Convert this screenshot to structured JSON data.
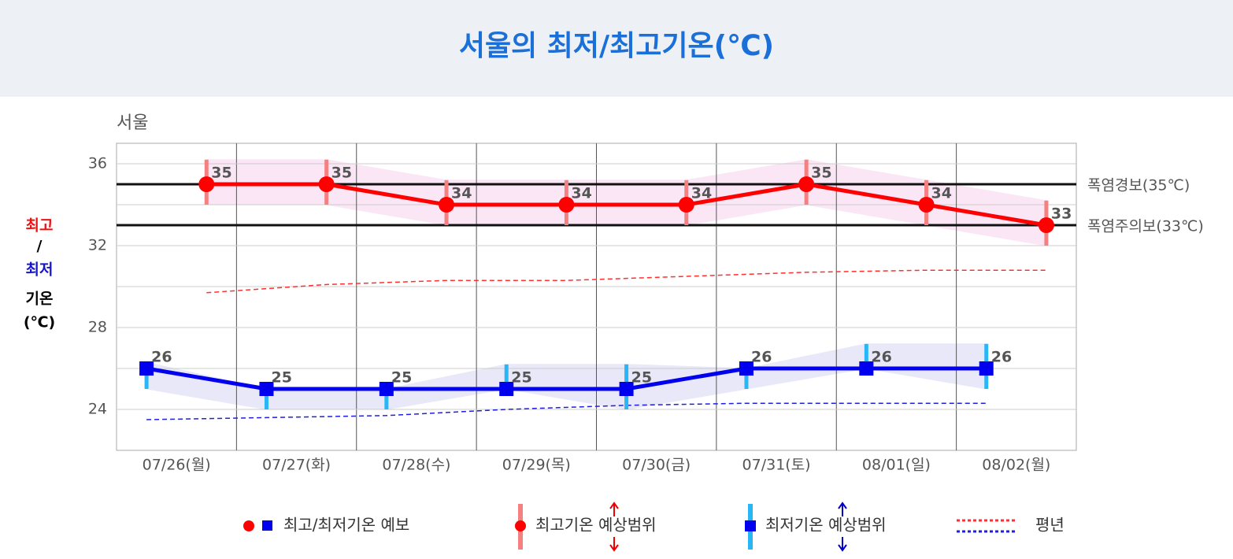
{
  "chart_data": {
    "type": "line",
    "title": "서울의 최저/최고기온(℃)",
    "subtitle": "서울",
    "y_axis_title": [
      "최고",
      "/",
      "최저",
      "기온",
      "(℃)"
    ],
    "categories": [
      "07/26(월)",
      "07/27(화)",
      "07/28(수)",
      "07/29(목)",
      "07/30(금)",
      "07/31(토)",
      "08/01(일)",
      "08/02(월)"
    ],
    "ylim": [
      22,
      37
    ],
    "yticks": [
      24,
      28,
      32,
      36
    ],
    "y_minor_grid": [
      26,
      30,
      34
    ],
    "grid": true,
    "series": [
      {
        "color": "#ff0000",
        "marker": "circle",
        "values": [
          35,
          35,
          34,
          34,
          34,
          35,
          34,
          33
        ],
        "range_low": [
          34,
          34,
          33,
          33,
          33,
          34,
          33,
          32
        ],
        "range_high": [
          36.2,
          36.2,
          35.2,
          35.2,
          35.2,
          36.2,
          35.2,
          34.2
        ],
        "range_color": "#f58080",
        "band_color": "#fbe6f6"
      },
      {
        "color": "#0000ee",
        "marker": "square",
        "values": [
          26,
          25,
          25,
          25,
          25,
          26,
          26,
          26
        ],
        "range_low": [
          25,
          24,
          24,
          25,
          24,
          25,
          26,
          25
        ],
        "range_high": [
          26.3,
          25,
          25,
          26.2,
          26.2,
          26,
          27.2,
          27.2
        ],
        "range_color": "#29b6f6",
        "band_color": "#e8e8f8"
      }
    ],
    "normals": [
      {
        "color": "#ff3030",
        "values": [
          29.7,
          30.1,
          30.3,
          30.3,
          30.5,
          30.7,
          30.8,
          30.8
        ]
      },
      {
        "color": "#2020dd",
        "values": [
          23.5,
          23.6,
          23.7,
          24.0,
          24.2,
          24.3,
          24.3,
          24.3
        ]
      }
    ],
    "thresholds": [
      {
        "value": 35,
        "label": "폭염경보(35℃)"
      },
      {
        "value": 33,
        "label": "폭염주의보(33℃)"
      }
    ],
    "legend": {
      "forecast": "최고/최저기온 예보",
      "max_range": "최고기온 예상범위",
      "min_range": "최저기온 예상범위",
      "normal": "평년"
    }
  }
}
